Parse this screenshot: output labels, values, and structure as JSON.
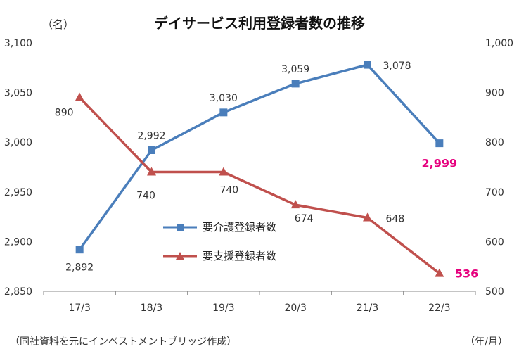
{
  "chart_data": {
    "type": "line",
    "title": "デイサービス利用登録者数の推移",
    "y_unit_label": "（名）",
    "x_unit_label": "（年/月）",
    "source_note": "（同社資料を元にインベストメントブリッジ作成）",
    "categories": [
      "17/3",
      "18/3",
      "19/3",
      "20/3",
      "21/3",
      "22/3"
    ],
    "left_axis": {
      "ylim": [
        2850,
        3100
      ],
      "ticks": [
        "2,850",
        "2,900",
        "2,950",
        "3,000",
        "3,050",
        "3,100"
      ]
    },
    "right_axis": {
      "ylim": [
        500,
        1000
      ],
      "ticks": [
        "500",
        "600",
        "700",
        "800",
        "900",
        "1,000"
      ]
    },
    "grid": false,
    "legend_position": "center",
    "series": [
      {
        "name": "要介護登録者数",
        "axis": "left",
        "marker": "square",
        "color": "#4a7ebb",
        "values": [
          2892,
          2992,
          3030,
          3059,
          3078,
          2999
        ],
        "labels": [
          "2,892",
          "2,992",
          "3,030",
          "3,059",
          "3,078",
          "2,999"
        ]
      },
      {
        "name": "要支援登録者数",
        "axis": "right",
        "marker": "triangle",
        "color": "#c0504d",
        "values": [
          890,
          740,
          740,
          674,
          648,
          536
        ],
        "labels": [
          "890",
          "740",
          "740",
          "674",
          "648",
          "536"
        ]
      }
    ],
    "highlight_color": "#e6007e"
  }
}
